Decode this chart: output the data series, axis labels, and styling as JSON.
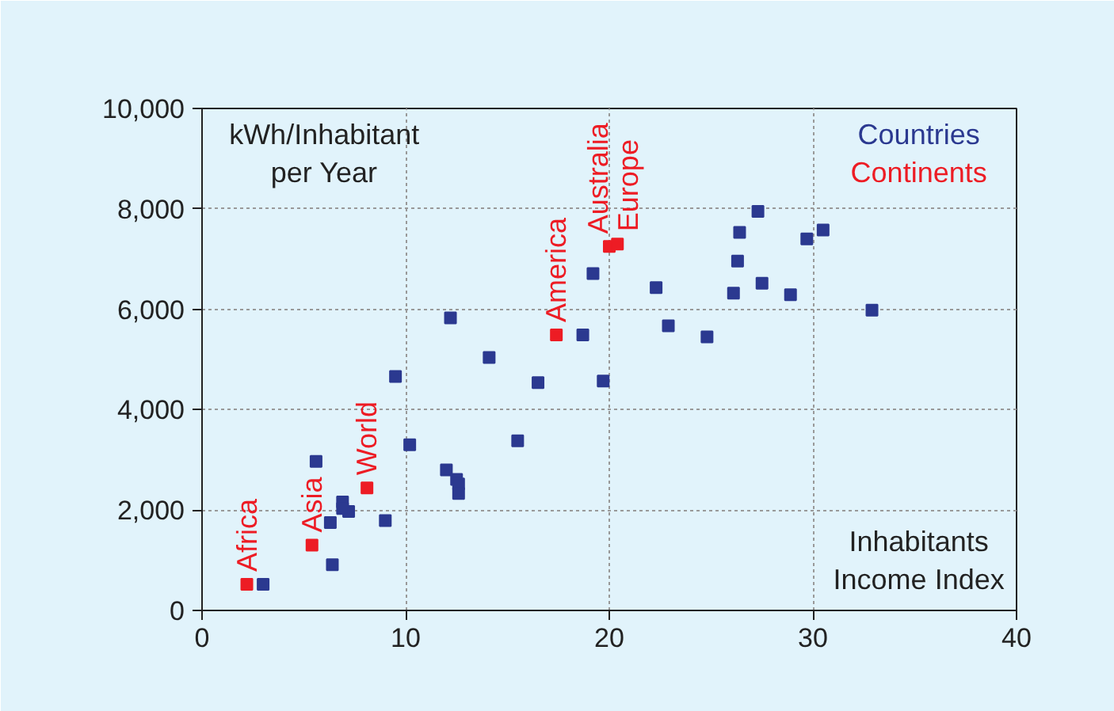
{
  "chart_data": {
    "type": "scatter",
    "xlabel": "Inhabitants\nIncome Index",
    "ylabel": "kWh/Inhabitant\nper Year",
    "xlim": [
      0,
      40
    ],
    "ylim": [
      0,
      10000
    ],
    "xticks": [
      0,
      10,
      20,
      30,
      40
    ],
    "yticks": [
      0,
      {
        "value": 2000,
        "label": "2,000"
      },
      {
        "value": 4000,
        "label": "4,000"
      },
      {
        "value": 6000,
        "label": "6,000"
      },
      {
        "value": 8000,
        "label": "8,000"
      },
      {
        "value": 10000,
        "label": "10,000"
      }
    ],
    "grid": true,
    "marker": "square",
    "series": [
      {
        "name": "Countries",
        "color": "#2b3990",
        "x": [
          3.0,
          5.6,
          6.4,
          6.3,
          6.9,
          7.2,
          6.9,
          9.0,
          9.5,
          10.2,
          12.0,
          12.5,
          12.6,
          12.6,
          12.2,
          14.1,
          15.5,
          16.5,
          18.7,
          19.2,
          19.7,
          22.3,
          22.9,
          24.8,
          26.1,
          26.3,
          26.4,
          27.3,
          27.5,
          28.9,
          29.7,
          30.5,
          32.9
        ],
        "values": [
          520,
          2970,
          910,
          1750,
          2160,
          1970,
          2030,
          1790,
          4660,
          3300,
          2800,
          2610,
          2520,
          2330,
          5830,
          5040,
          3380,
          4540,
          5490,
          6710,
          4570,
          6430,
          5670,
          5450,
          6320,
          6960,
          7530,
          7950,
          6520,
          6290,
          7400,
          7580,
          5980
        ]
      },
      {
        "name": "Continents",
        "color": "#ed1c24",
        "x": [
          2.2,
          5.4,
          8.1,
          17.4,
          20.0,
          20.4
        ],
        "values": [
          520,
          1300,
          2440,
          5490,
          7250,
          7300
        ]
      }
    ],
    "annotations": [
      {
        "text": "Africa",
        "x": 2.2,
        "y": 520
      },
      {
        "text": "Asia",
        "x": 5.4,
        "y": 1300
      },
      {
        "text": "World",
        "x": 8.1,
        "y": 2440
      },
      {
        "text": "America",
        "x": 17.4,
        "y": 5490
      },
      {
        "text": "Australia",
        "x": 20.0,
        "y": 7250
      },
      {
        "text": "Europe",
        "x": 20.4,
        "y": 7300
      }
    ]
  }
}
